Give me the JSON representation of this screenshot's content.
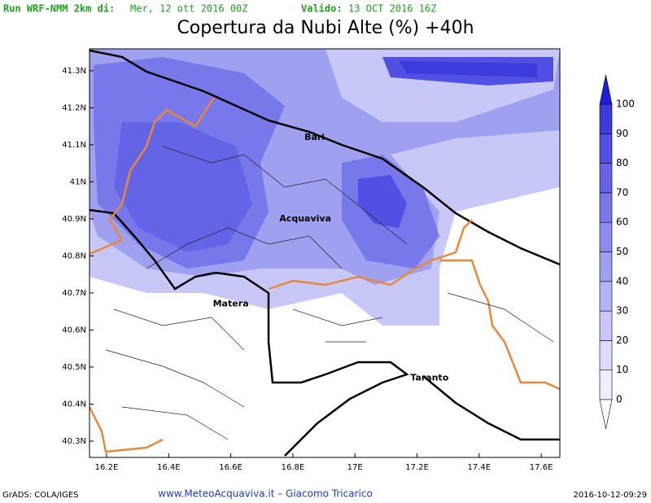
{
  "header": {
    "run": "Run WRF-NMM 2km di:",
    "run_date": "Mer, 12 ott 2016 00Z",
    "valid_label": "Valido:",
    "valid_date": "13 OCT 2016 16Z",
    "title": "Copertura da Nubi Alte (%) +40h"
  },
  "map": {
    "xlim": [
      16.145,
      17.66
    ],
    "ylim": [
      40.256,
      41.359
    ],
    "xticks": [
      {
        "value": 16.2,
        "label": "16.2E"
      },
      {
        "value": 16.4,
        "label": "16.4E"
      },
      {
        "value": 16.6,
        "label": "16.6E"
      },
      {
        "value": 16.8,
        "label": "16.8E"
      },
      {
        "value": 17,
        "label": "17E"
      },
      {
        "value": 17.2,
        "label": "17.2E"
      },
      {
        "value": 17.4,
        "label": "17.4E"
      },
      {
        "value": 17.6,
        "label": "17.6E"
      }
    ],
    "yticks": [
      {
        "value": 41.3,
        "label": "41.3N"
      },
      {
        "value": 41.2,
        "label": "41.2N"
      },
      {
        "value": 41.1,
        "label": "41.1N"
      },
      {
        "value": 41,
        "label": "41N"
      },
      {
        "value": 40.9,
        "label": "40.9N"
      },
      {
        "value": 40.8,
        "label": "40.8N"
      },
      {
        "value": 40.7,
        "label": "40.7N"
      },
      {
        "value": 40.6,
        "label": "40.6N"
      },
      {
        "value": 40.5,
        "label": "40.5N"
      },
      {
        "value": 40.4,
        "label": "40.4N"
      },
      {
        "value": 40.3,
        "label": "40.3N"
      }
    ],
    "cities": [
      {
        "name": "Bari",
        "lon": 16.87,
        "lat": 41.12
      },
      {
        "name": "Acquaviva",
        "lon": 16.84,
        "lat": 40.9
      },
      {
        "name": "Matera",
        "lon": 16.6,
        "lat": 40.67
      },
      {
        "name": "Taranto",
        "lon": 17.24,
        "lat": 40.47
      }
    ]
  },
  "colorbar": {
    "levels": [
      0,
      10,
      20,
      30,
      40,
      50,
      60,
      70,
      80,
      90,
      100
    ],
    "colors": [
      "#eeeeff",
      "#dcdcfc",
      "#c8c8f8",
      "#b4b4f4",
      "#a0a0f0",
      "#8c8cee",
      "#7878ea",
      "#6464e6",
      "#5050e2",
      "#3c3cdc"
    ],
    "under_color": "#ffffff",
    "over_color": "#1e1ed8"
  },
  "footer": {
    "left": "GrADS: COLA/IGES",
    "center": "www.MeteoAcquaviva.it  –  Giacomo Tricarico",
    "right": "2016-10-12-09:29"
  }
}
